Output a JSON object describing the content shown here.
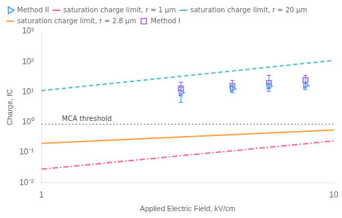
{
  "chart_data": {
    "type": "line",
    "xlabel": "Applied Electric Field, kV/cm",
    "ylabel": "Charge, fC",
    "log": true,
    "xlim": [
      1,
      10
    ],
    "ylim": [
      0.01,
      1000
    ],
    "xticks": [
      1,
      10
    ],
    "yticks": [
      {
        "value": 0.01,
        "label": "10⁻²"
      },
      {
        "value": 0.1,
        "label": "10⁻¹"
      },
      {
        "value": 1,
        "label": "10⁰"
      },
      {
        "value": 10,
        "label": "10¹"
      },
      {
        "value": 100,
        "label": "10²"
      },
      {
        "value": 1000,
        "label": "10³"
      }
    ],
    "grid": false,
    "legend": "upper left",
    "reference_line": {
      "y": 0.85,
      "label": "MCA threshold",
      "line_style": "dotted"
    },
    "series": [
      {
        "name": "Method II",
        "type": "scatter",
        "marker": "triangle-right",
        "x": [
          3.0,
          4.5,
          6.0,
          8.0
        ],
        "values": [
          9.5,
          13.0,
          15.5,
          16.5
        ],
        "yerr_low": [
          5.0,
          3.5,
          5.0,
          4.5
        ],
        "yerr_high": [
          4.5,
          3.5,
          3.5,
          3.5
        ]
      },
      {
        "name": "saturation charge limit, r = 1 μm",
        "type": "line",
        "line_style": "dashdot",
        "x": [
          1,
          10
        ],
        "values": [
          0.028,
          0.24
        ]
      },
      {
        "name": "saturation charge limit, r = 20 μm",
        "type": "line",
        "line_style": "dashed",
        "x": [
          1,
          10
        ],
        "values": [
          11.0,
          110.0
        ]
      },
      {
        "name": "saturation charge limit, r = 2.8 μm",
        "type": "line",
        "line_style": "solid",
        "x": [
          1,
          10
        ],
        "values": [
          0.2,
          0.55
        ]
      },
      {
        "name": "Method I",
        "type": "scatter",
        "marker": "square",
        "x": [
          3.0,
          4.5,
          6.0,
          8.0
        ],
        "values": [
          13.0,
          16.0,
          20.0,
          25.0
        ],
        "yerr_low": [
          5.5,
          4.5,
          7.0,
          10.0
        ],
        "yerr_high": [
          8.0,
          8.0,
          15.0,
          10.0
        ]
      }
    ]
  }
}
